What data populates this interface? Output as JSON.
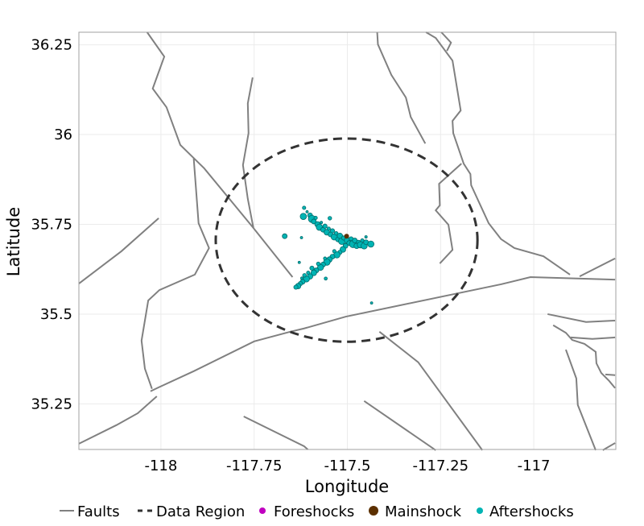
{
  "chart_data": {
    "type": "scatter",
    "xlabel": "Longitude",
    "ylabel": "Latitude",
    "xlim": [
      -118.22,
      -116.78
    ],
    "ylim": [
      35.123,
      36.285
    ],
    "x_ticks": [
      -118,
      -117.75,
      -117.5,
      -117.25,
      -117
    ],
    "x_tick_labels": [
      "-118",
      "-117.75",
      "-117.5",
      "-117.25",
      "-117"
    ],
    "y_ticks": [
      35.25,
      35.5,
      35.75,
      36,
      36.25
    ],
    "y_tick_labels": [
      "35.25",
      "35.5",
      "35.75",
      "36",
      "36.25"
    ],
    "grid": true,
    "legend_placement": "bottom",
    "legend": [
      {
        "key": "faults",
        "label": "Faults"
      },
      {
        "key": "region",
        "label": "Data Region"
      },
      {
        "key": "foreshocks",
        "label": "Foreshocks"
      },
      {
        "key": "mainshock",
        "label": "Mainshock"
      },
      {
        "key": "aftershocks",
        "label": "Aftershocks"
      }
    ],
    "colors": {
      "faults": "#808080",
      "region": "#333333",
      "foreshocks": "#c000c0",
      "mainshock": "#5c3000",
      "aftershocks": "#00b4b4",
      "aftershock_outline": "#006a6a",
      "grid": "#ebebeb",
      "border": "#a0a0a0"
    },
    "data_region": {
      "center": [
        -117.502,
        35.706
      ],
      "radius_deg_lon": 0.351,
      "radius_deg_lat": 0.283
    },
    "faults": [
      [
        [
          -118.037,
          36.285
        ],
        [
          -117.991,
          36.217
        ],
        [
          -118.022,
          36.128
        ],
        [
          -117.985,
          36.076
        ],
        [
          -117.948,
          35.971
        ],
        [
          -117.884,
          35.906
        ],
        [
          -117.752,
          35.74
        ],
        [
          -117.647,
          35.603
        ]
      ],
      [
        [
          -117.912,
          35.933
        ],
        [
          -117.899,
          35.753
        ],
        [
          -117.871,
          35.684
        ],
        [
          -117.909,
          35.61
        ],
        [
          -118.004,
          35.567
        ],
        [
          -118.034,
          35.538
        ],
        [
          -118.052,
          35.426
        ],
        [
          -118.043,
          35.348
        ],
        [
          -118.024,
          35.292
        ]
      ],
      [
        [
          -118.028,
          35.285
        ],
        [
          -118.006,
          35.296
        ],
        [
          -117.912,
          35.341
        ],
        [
          -117.75,
          35.424
        ],
        [
          -117.653,
          35.451
        ],
        [
          -117.616,
          35.46
        ],
        [
          -117.504,
          35.493
        ],
        [
          -117.088,
          35.583
        ],
        [
          -117.009,
          35.603
        ],
        [
          -116.782,
          35.596
        ]
      ],
      [
        [
          -118.22,
          35.139
        ],
        [
          -118.119,
          35.191
        ],
        [
          -118.062,
          35.224
        ],
        [
          -118.011,
          35.271
        ]
      ],
      [
        [
          -118.22,
          35.585
        ],
        [
          -118.106,
          35.675
        ],
        [
          -118.006,
          35.767
        ]
      ],
      [
        [
          -117.754,
          36.159
        ],
        [
          -117.767,
          36.087
        ],
        [
          -117.765,
          36.004
        ],
        [
          -117.78,
          35.915
        ],
        [
          -117.767,
          35.821
        ],
        [
          -117.752,
          35.74
        ]
      ],
      [
        [
          -117.42,
          36.285
        ],
        [
          -117.418,
          36.251
        ],
        [
          -117.382,
          36.166
        ],
        [
          -117.343,
          36.103
        ],
        [
          -117.33,
          36.049
        ],
        [
          -117.291,
          35.975
        ]
      ],
      [
        [
          -117.289,
          36.285
        ],
        [
          -117.263,
          36.269
        ],
        [
          -117.218,
          36.206
        ],
        [
          -117.196,
          36.067
        ],
        [
          -117.218,
          36.038
        ],
        [
          -117.216,
          36.004
        ],
        [
          -117.188,
          35.919
        ],
        [
          -117.17,
          35.89
        ],
        [
          -117.168,
          35.859
        ],
        [
          -117.121,
          35.753
        ],
        [
          -117.088,
          35.709
        ],
        [
          -117.052,
          35.684
        ],
        [
          -116.974,
          35.661
        ],
        [
          -116.903,
          35.61
        ]
      ],
      [
        [
          -117.248,
          36.285
        ],
        [
          -117.222,
          36.256
        ],
        [
          -117.233,
          36.233
        ]
      ],
      [
        [
          -117.194,
          35.919
        ],
        [
          -117.254,
          35.863
        ],
        [
          -117.252,
          35.803
        ],
        [
          -117.263,
          35.789
        ],
        [
          -117.229,
          35.749
        ],
        [
          -117.218,
          35.679
        ],
        [
          -117.252,
          35.641
        ]
      ],
      [
        [
          -116.877,
          35.605
        ],
        [
          -116.782,
          35.655
        ]
      ],
      [
        [
          -117.414,
          35.451
        ],
        [
          -117.31,
          35.366
        ],
        [
          -117.138,
          35.121
        ]
      ],
      [
        [
          -117.455,
          35.258
        ],
        [
          -117.263,
          35.121
        ]
      ],
      [
        [
          -116.963,
          35.5
        ],
        [
          -116.86,
          35.478
        ],
        [
          -116.782,
          35.482
        ]
      ],
      [
        [
          -116.948,
          35.469
        ],
        [
          -116.914,
          35.448
        ],
        [
          -116.897,
          35.428
        ],
        [
          -116.864,
          35.417
        ],
        [
          -116.834,
          35.395
        ],
        [
          -116.832,
          35.363
        ],
        [
          -116.819,
          35.336
        ],
        [
          -116.798,
          35.314
        ],
        [
          -116.782,
          35.294
        ]
      ],
      [
        [
          -116.901,
          35.435
        ],
        [
          -116.843,
          35.431
        ],
        [
          -116.782,
          35.435
        ]
      ],
      [
        [
          -116.914,
          35.401
        ],
        [
          -116.886,
          35.321
        ],
        [
          -116.882,
          35.247
        ],
        [
          -116.834,
          35.121
        ]
      ],
      [
        [
          -116.808,
          35.332
        ],
        [
          -116.782,
          35.33
        ]
      ],
      [
        [
          -116.815,
          35.121
        ],
        [
          -116.782,
          35.141
        ]
      ],
      [
        [
          -117.778,
          35.215
        ],
        [
          -117.616,
          35.132
        ],
        [
          -117.606,
          35.123
        ]
      ]
    ],
    "mainshock": [
      [
        -117.502,
        35.717,
        3.0
      ]
    ],
    "foreshocks": [],
    "aftershocks": [
      [
        -117.616,
        35.796,
        2.5
      ],
      [
        -117.618,
        35.772,
        3.5
      ],
      [
        -117.608,
        35.785,
        2.0
      ],
      [
        -117.6,
        35.775,
        3.0
      ],
      [
        -117.595,
        35.765,
        3.8
      ],
      [
        -117.59,
        35.758,
        3.0
      ],
      [
        -117.585,
        35.768,
        2.5
      ],
      [
        -117.58,
        35.75,
        3.2
      ],
      [
        -117.575,
        35.742,
        3.5
      ],
      [
        -117.57,
        35.755,
        2.2
      ],
      [
        -117.565,
        35.735,
        3.0
      ],
      [
        -117.56,
        35.745,
        2.8
      ],
      [
        -117.555,
        35.728,
        3.3
      ],
      [
        -117.55,
        35.738,
        2.5
      ],
      [
        -117.545,
        35.722,
        3.0
      ],
      [
        -117.54,
        35.732,
        2.8
      ],
      [
        -117.535,
        35.715,
        3.5
      ],
      [
        -117.53,
        35.725,
        2.6
      ],
      [
        -117.525,
        35.708,
        3.0
      ],
      [
        -117.52,
        35.718,
        3.2
      ],
      [
        -117.515,
        35.703,
        3.6
      ],
      [
        -117.51,
        35.712,
        2.8
      ],
      [
        -117.5,
        35.705,
        3.4
      ],
      [
        -117.495,
        35.698,
        3.0
      ],
      [
        -117.49,
        35.71,
        2.7
      ],
      [
        -117.485,
        35.695,
        3.8
      ],
      [
        -117.48,
        35.705,
        3.0
      ],
      [
        -117.475,
        35.69,
        3.2
      ],
      [
        -117.47,
        35.7,
        2.8
      ],
      [
        -117.465,
        35.693,
        3.5
      ],
      [
        -117.46,
        35.705,
        2.5
      ],
      [
        -117.455,
        35.69,
        3.5
      ],
      [
        -117.45,
        35.7,
        3.0
      ],
      [
        -117.45,
        35.715,
        2.2
      ],
      [
        -117.437,
        35.695,
        3.5
      ],
      [
        -117.547,
        35.767,
        2.6
      ],
      [
        -117.505,
        35.69,
        3.0
      ],
      [
        -117.512,
        35.68,
        3.3
      ],
      [
        -117.52,
        35.672,
        2.8
      ],
      [
        -117.528,
        35.665,
        3.5
      ],
      [
        -117.535,
        35.675,
        2.5
      ],
      [
        -117.54,
        35.66,
        3.0
      ],
      [
        -117.548,
        35.652,
        3.2
      ],
      [
        -117.555,
        35.645,
        3.6
      ],
      [
        -117.56,
        35.655,
        2.4
      ],
      [
        -117.565,
        35.638,
        3.0
      ],
      [
        -117.572,
        35.63,
        3.4
      ],
      [
        -117.578,
        35.64,
        2.6
      ],
      [
        -117.583,
        35.622,
        3.0
      ],
      [
        -117.59,
        35.615,
        3.3
      ],
      [
        -117.595,
        35.628,
        2.8
      ],
      [
        -117.6,
        35.605,
        3.2
      ],
      [
        -117.605,
        35.615,
        2.5
      ],
      [
        -117.61,
        35.598,
        3.5
      ],
      [
        -117.615,
        35.608,
        2.6
      ],
      [
        -117.62,
        35.59,
        3.0
      ],
      [
        -117.626,
        35.585,
        2.8
      ],
      [
        -117.632,
        35.578,
        3.2
      ],
      [
        -117.638,
        35.575,
        2.8
      ],
      [
        -117.622,
        35.6,
        2.2
      ],
      [
        -117.668,
        35.717,
        3.0
      ],
      [
        -117.623,
        35.713,
        2.0
      ],
      [
        -117.629,
        35.644,
        2.0
      ],
      [
        -117.435,
        35.531,
        2.0
      ],
      [
        -117.558,
        35.599,
        2.4
      ]
    ]
  }
}
